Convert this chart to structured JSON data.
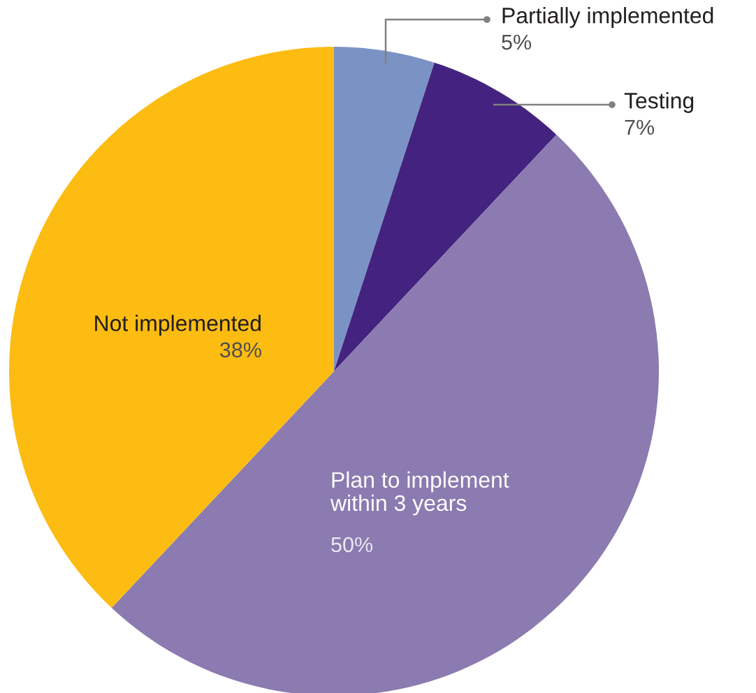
{
  "chart_data": {
    "type": "pie",
    "categories": [
      "Partially implemented",
      "Testing",
      "Plan to implement within 3 years",
      "Not implemented"
    ],
    "values": [
      5,
      7,
      50,
      38
    ],
    "colors": [
      "#7b93c4",
      "#43237f",
      "#8b7bb0",
      "#fcbc12"
    ],
    "value_labels": [
      "5%",
      "7%",
      "50%",
      "38%"
    ]
  }
}
